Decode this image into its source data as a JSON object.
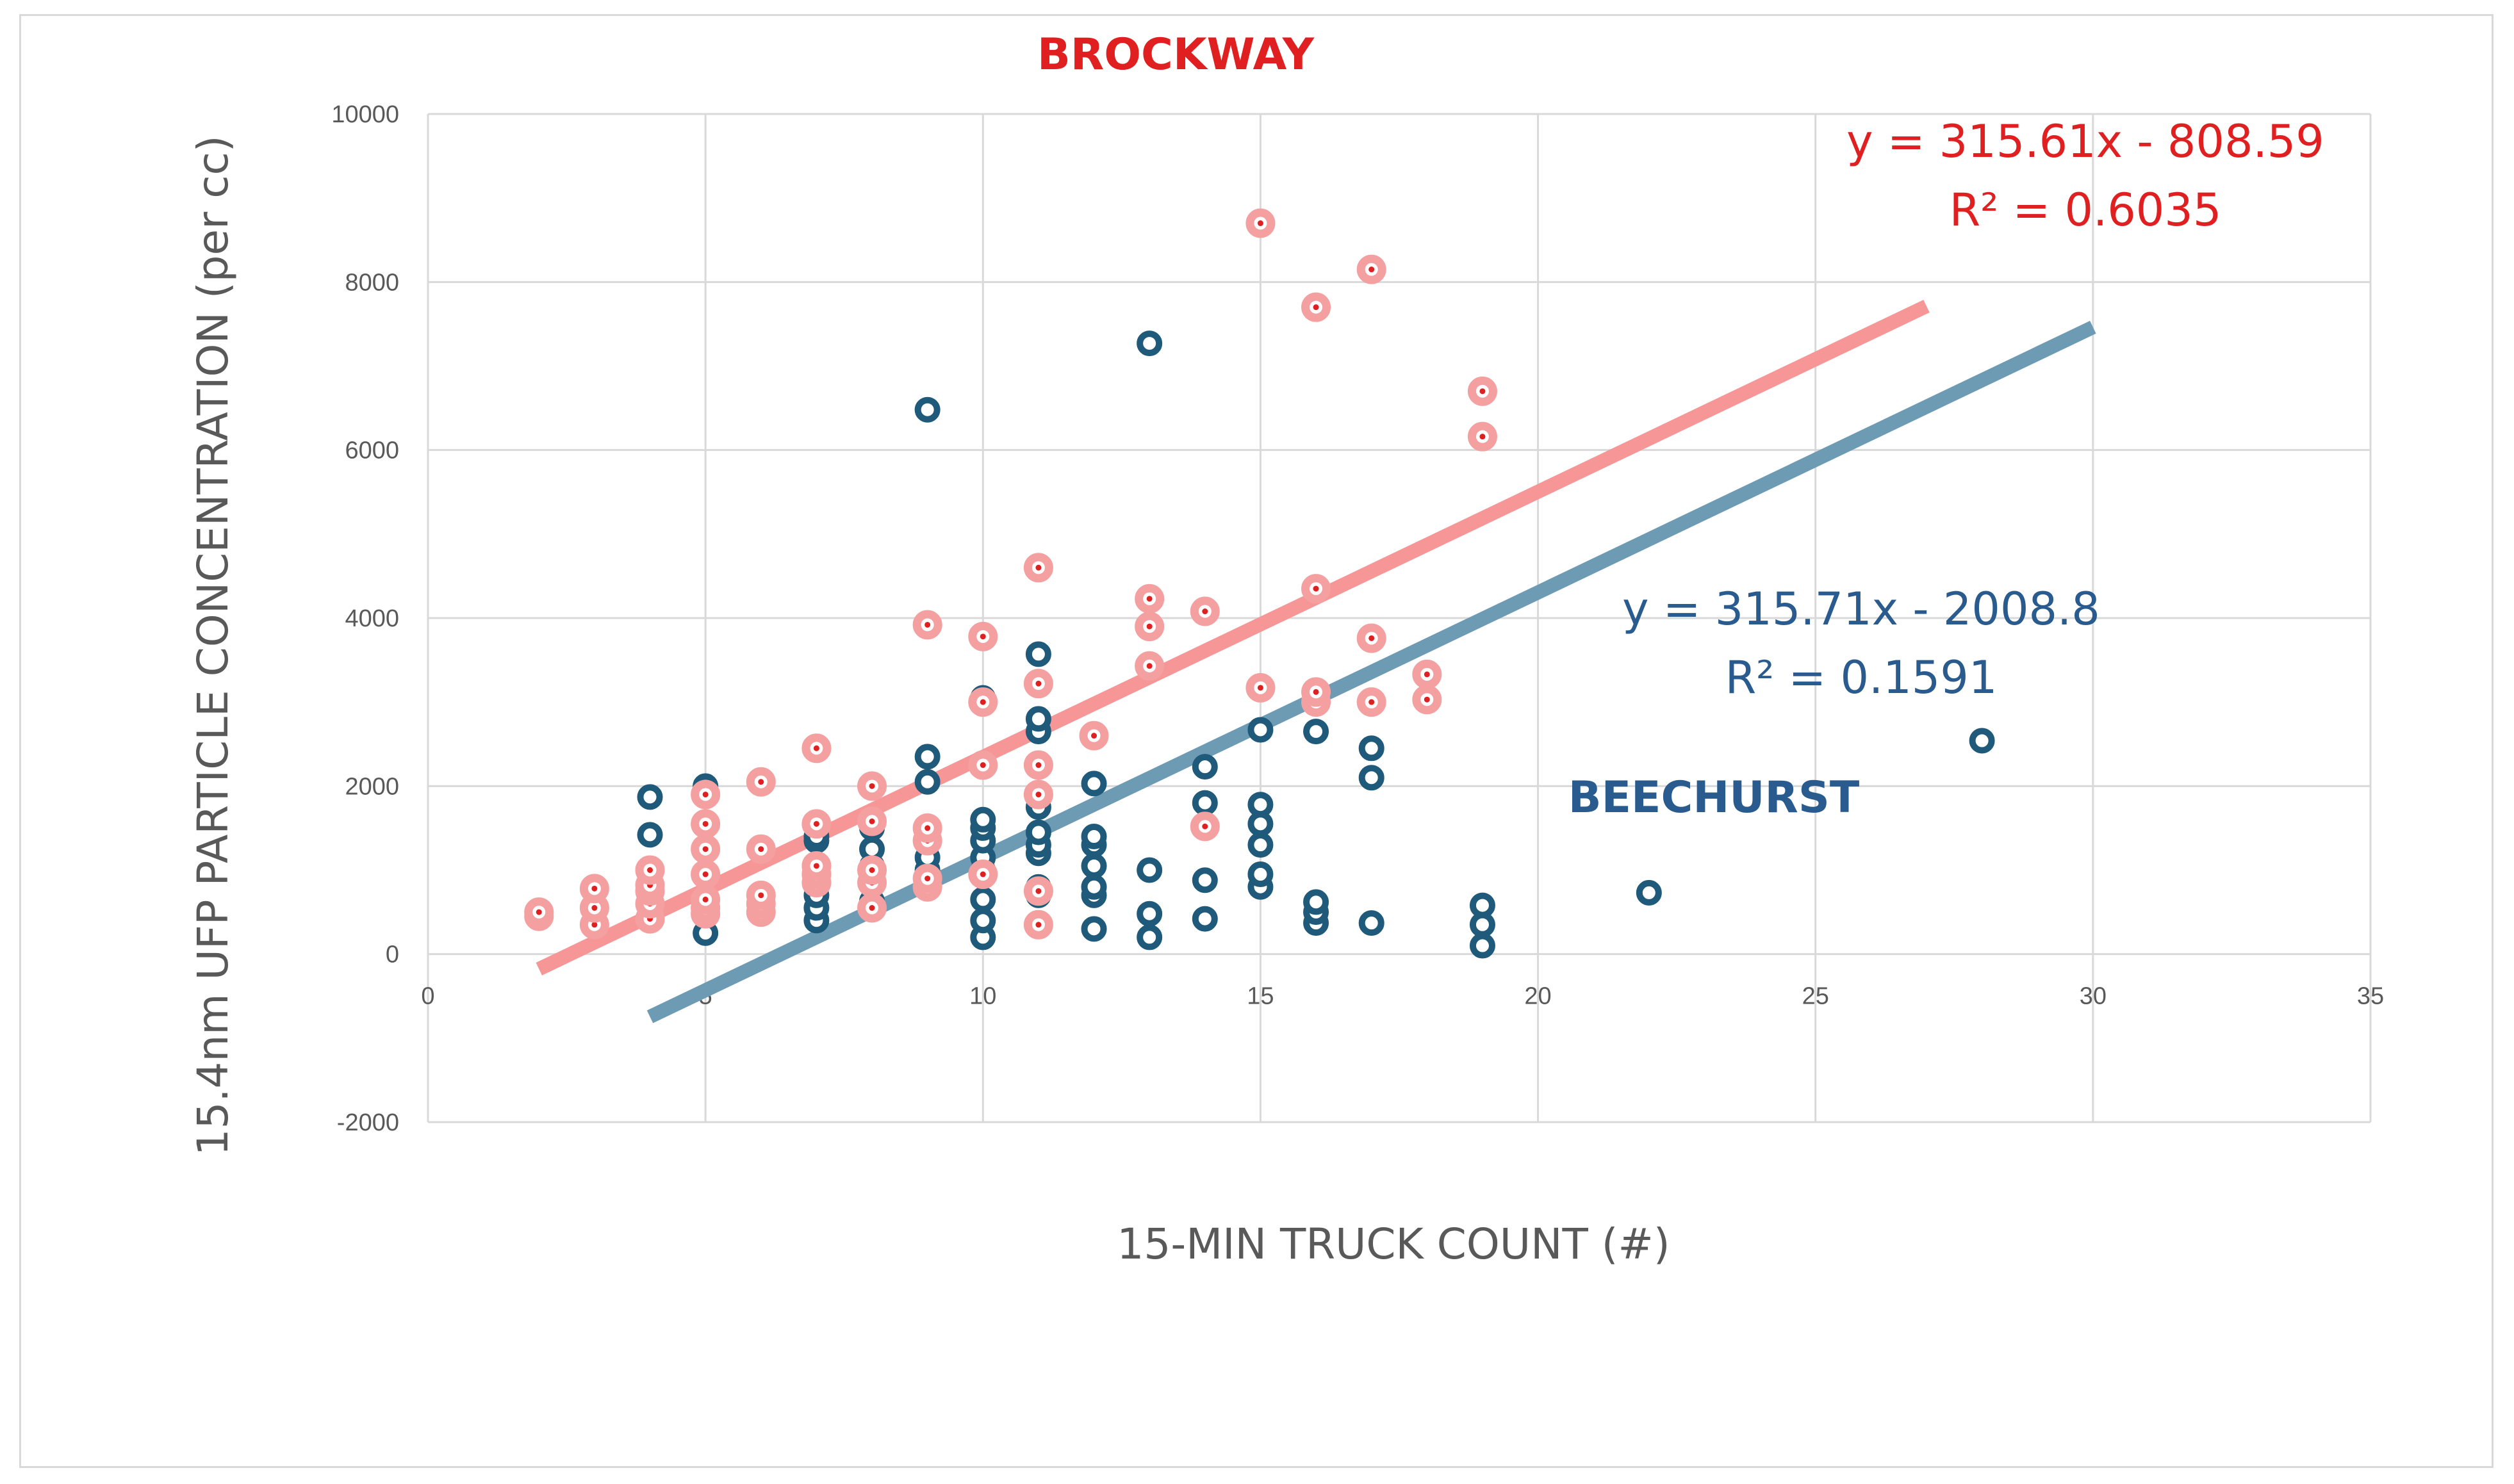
{
  "chart_data": {
    "type": "scatter",
    "title": "",
    "xlabel": "15-MIN TRUCK COUNT (#)",
    "ylabel": "15.4nm UFP PARTICLE CONCENTRATION (per cc)",
    "xlim": [
      0,
      35
    ],
    "ylim": [
      -2000,
      10000
    ],
    "xticks": [
      "0",
      "5",
      "10",
      "15",
      "20",
      "25",
      "30",
      "35"
    ],
    "yticks": [
      "-2000",
      "0",
      "2000",
      "4000",
      "6000",
      "8000",
      "10000"
    ],
    "grid": true,
    "series": [
      {
        "name": "BROCKWAY",
        "color": "#e02020",
        "fill_color": "#f4a0a0",
        "trendline": {
          "equation": "y = 315.61x - 808.59",
          "r2": "R² = 0.6035",
          "slope": 315.61,
          "intercept": -808.59,
          "x_from": 2,
          "x_to": 27,
          "color": "#f79696"
        },
        "points": [
          [
            2,
            450
          ],
          [
            2,
            500
          ],
          [
            3,
            350
          ],
          [
            3,
            550
          ],
          [
            3,
            780
          ],
          [
            4,
            420
          ],
          [
            4,
            600
          ],
          [
            4,
            750
          ],
          [
            4,
            820
          ],
          [
            4,
            1000
          ],
          [
            5,
            480
          ],
          [
            5,
            550
          ],
          [
            5,
            650
          ],
          [
            5,
            950
          ],
          [
            5,
            1250
          ],
          [
            5,
            1550
          ],
          [
            5,
            1900
          ],
          [
            6,
            500
          ],
          [
            6,
            600
          ],
          [
            6,
            700
          ],
          [
            6,
            1250
          ],
          [
            6,
            2050
          ],
          [
            7,
            850
          ],
          [
            7,
            950
          ],
          [
            7,
            1050
          ],
          [
            7,
            1550
          ],
          [
            7,
            2450
          ],
          [
            8,
            550
          ],
          [
            8,
            850
          ],
          [
            8,
            1000
          ],
          [
            8,
            2000
          ],
          [
            8,
            1580
          ],
          [
            9,
            800
          ],
          [
            9,
            900
          ],
          [
            9,
            1350
          ],
          [
            9,
            1500
          ],
          [
            9,
            3920
          ],
          [
            10,
            950
          ],
          [
            10,
            2250
          ],
          [
            10,
            3000
          ],
          [
            10,
            3780
          ],
          [
            11,
            350
          ],
          [
            11,
            750
          ],
          [
            11,
            1900
          ],
          [
            11,
            2250
          ],
          [
            11,
            3220
          ],
          [
            11,
            4600
          ],
          [
            12,
            2600
          ],
          [
            13,
            3430
          ],
          [
            13,
            3900
          ],
          [
            13,
            4230
          ],
          [
            14,
            1520
          ],
          [
            14,
            4080
          ],
          [
            15,
            3170
          ],
          [
            15,
            8700
          ],
          [
            16,
            3000
          ],
          [
            16,
            3120
          ],
          [
            16,
            4350
          ],
          [
            16,
            7700
          ],
          [
            17,
            3000
          ],
          [
            17,
            3760
          ],
          [
            17,
            8150
          ],
          [
            18,
            3030
          ],
          [
            18,
            3330
          ],
          [
            19,
            6160
          ],
          [
            19,
            6700
          ]
        ]
      },
      {
        "name": "BEECHURST",
        "color": "#1f5a7a",
        "fill_color": "#ffffff",
        "trendline": {
          "equation": "y = 315.71x - 2008.8",
          "r2": "R² = 0.1591",
          "slope": 315.71,
          "intercept": -2008.8,
          "x_from": 4,
          "x_to": 30,
          "color": "#6e9bb4"
        },
        "points": [
          [
            4,
            700
          ],
          [
            4,
            1420
          ],
          [
            4,
            1870
          ],
          [
            5,
            250
          ],
          [
            5,
            500
          ],
          [
            5,
            2000
          ],
          [
            7,
            400
          ],
          [
            7,
            550
          ],
          [
            7,
            700
          ],
          [
            7,
            1350
          ],
          [
            7,
            1400
          ],
          [
            8,
            630
          ],
          [
            8,
            1050
          ],
          [
            8,
            1250
          ],
          [
            8,
            1500
          ],
          [
            9,
            900
          ],
          [
            9,
            1000
          ],
          [
            9,
            1150
          ],
          [
            9,
            2050
          ],
          [
            9,
            2350
          ],
          [
            9,
            6480
          ],
          [
            10,
            200
          ],
          [
            10,
            400
          ],
          [
            10,
            650
          ],
          [
            10,
            1000
          ],
          [
            10,
            1150
          ],
          [
            10,
            1350
          ],
          [
            10,
            1500
          ],
          [
            10,
            1600
          ],
          [
            10,
            3050
          ],
          [
            11,
            700
          ],
          [
            11,
            800
          ],
          [
            11,
            1200
          ],
          [
            11,
            1300
          ],
          [
            11,
            1450
          ],
          [
            11,
            1750
          ],
          [
            11,
            2250
          ],
          [
            11,
            2650
          ],
          [
            11,
            2800
          ],
          [
            11,
            3570
          ],
          [
            12,
            300
          ],
          [
            12,
            700
          ],
          [
            12,
            800
          ],
          [
            12,
            1050
          ],
          [
            12,
            1300
          ],
          [
            12,
            1400
          ],
          [
            12,
            2030
          ],
          [
            13,
            200
          ],
          [
            13,
            480
          ],
          [
            13,
            1000
          ],
          [
            13,
            7270
          ],
          [
            14,
            420
          ],
          [
            14,
            880
          ],
          [
            14,
            1520
          ],
          [
            14,
            1800
          ],
          [
            14,
            2230
          ],
          [
            15,
            800
          ],
          [
            15,
            950
          ],
          [
            15,
            1300
          ],
          [
            15,
            1550
          ],
          [
            15,
            1780
          ],
          [
            15,
            2670
          ],
          [
            16,
            370
          ],
          [
            16,
            500
          ],
          [
            16,
            620
          ],
          [
            16,
            2650
          ],
          [
            16,
            3050
          ],
          [
            17,
            370
          ],
          [
            17,
            2100
          ],
          [
            17,
            2450
          ],
          [
            19,
            100
          ],
          [
            19,
            350
          ],
          [
            19,
            580
          ],
          [
            22,
            730
          ],
          [
            28,
            2540
          ]
        ]
      }
    ],
    "annotations": [
      {
        "text": "BROCKWAY",
        "color": "#e02020",
        "weight": "bold"
      },
      {
        "text": "BEECHURST",
        "color": "#2a5b8e",
        "weight": "bold"
      }
    ]
  }
}
